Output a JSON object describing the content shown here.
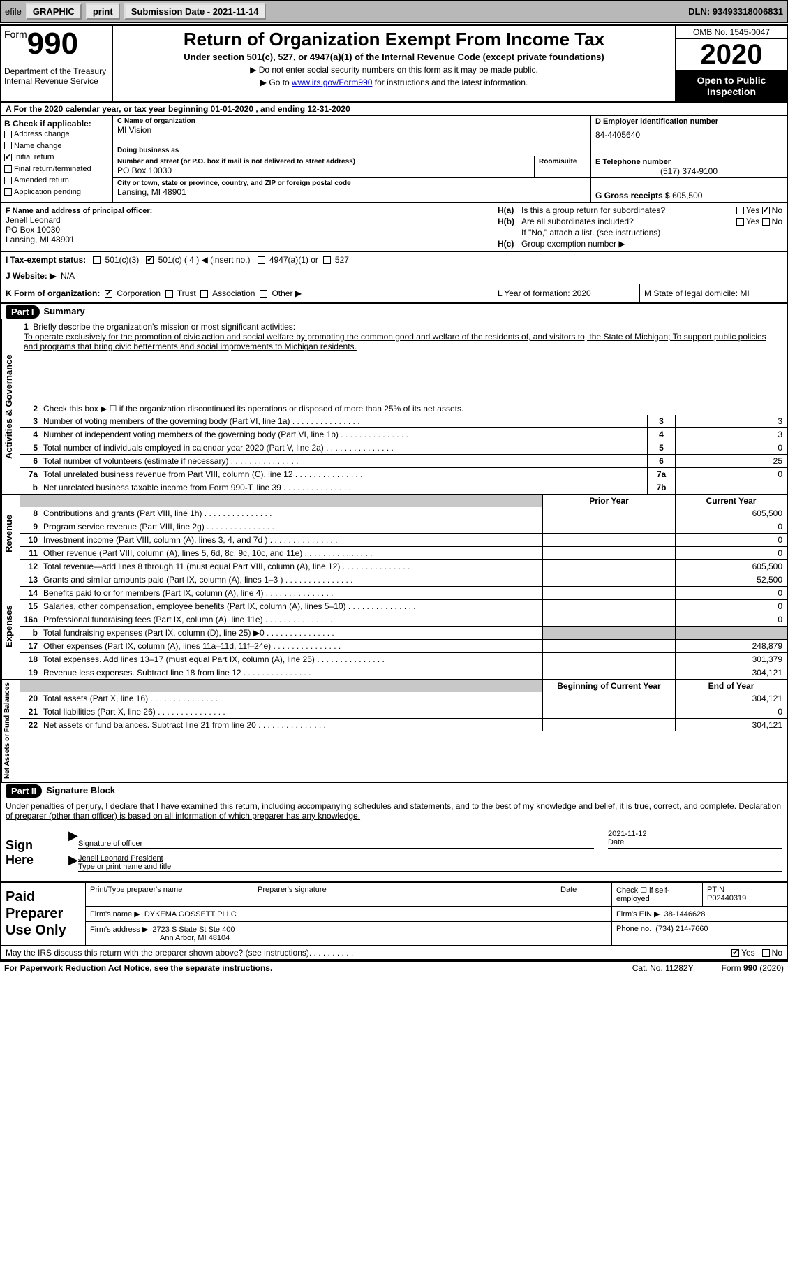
{
  "top_bar": {
    "efile": "efile",
    "graphic": "GRAPHIC",
    "print": "print",
    "sub_label": "Submission Date - 2021-11-14",
    "dln": "DLN: 93493318006831"
  },
  "header": {
    "form_word": "Form",
    "form_num": "990",
    "dept": "Department of the Treasury\nInternal Revenue Service",
    "title": "Return of Organization Exempt From Income Tax",
    "subtitle": "Under section 501(c), 527, or 4947(a)(1) of the Internal Revenue Code (except private foundations)",
    "note1": "▶ Do not enter social security numbers on this form as it may be made public.",
    "note2_pre": "▶ Go to ",
    "note2_link": "www.irs.gov/Form990",
    "note2_post": " for instructions and the latest information.",
    "omb": "OMB No. 1545-0047",
    "year": "2020",
    "open": "Open to Public Inspection"
  },
  "row_a": "A For the 2020 calendar year, or tax year beginning 01-01-2020   , and ending 12-31-2020",
  "col_b": {
    "hdr": "B Check if applicable:",
    "items": [
      "Address change",
      "Name change",
      "Initial return",
      "Final return/terminated",
      "Amended return",
      "Application pending"
    ]
  },
  "col_c": {
    "name_lbl": "C Name of organization",
    "name": "MI Vision",
    "dba_lbl": "Doing business as",
    "dba": "",
    "addr_lbl": "Number and street (or P.O. box if mail is not delivered to street address)",
    "room_lbl": "Room/suite",
    "addr": "PO Box 10030",
    "city_lbl": "City or town, state or province, country, and ZIP or foreign postal code",
    "city": "Lansing, MI  48901"
  },
  "col_d": {
    "ein_lbl": "D Employer identification number",
    "ein": "84-4405640",
    "tel_lbl": "E Telephone number",
    "tel": "(517) 374-9100",
    "gross_lbl": "G Gross receipts $",
    "gross": "605,500"
  },
  "col_f": {
    "lbl": "F Name and address of principal officer:",
    "name": "Jenell Leonard",
    "addr1": "PO Box 10030",
    "addr2": "Lansing, MI  48901"
  },
  "col_h": {
    "a_lbl": "H(a)",
    "a_txt": "Is this a group return for subordinates?",
    "b_lbl": "H(b)",
    "b_txt": "Are all subordinates included?",
    "b_note": "If \"No,\" attach a list. (see instructions)",
    "c_lbl": "H(c)",
    "c_txt": "Group exemption number ▶",
    "yes": "Yes",
    "no": "No"
  },
  "row_i": {
    "lbl": "I   Tax-exempt status:",
    "o1": "501(c)(3)",
    "o2": "501(c) ( 4 ) ◀ (insert no.)",
    "o3": "4947(a)(1) or",
    "o4": "527"
  },
  "row_j": {
    "lbl": "J   Website: ▶",
    "val": "N/A"
  },
  "row_k": {
    "lbl": "K Form of organization:",
    "opts": [
      "Corporation",
      "Trust",
      "Association",
      "Other ▶"
    ],
    "l": "L Year of formation: 2020",
    "m": "M State of legal domicile: MI"
  },
  "part1": {
    "num": "Part I",
    "title": "Summary",
    "side1": "Activities & Governance",
    "side2": "Revenue",
    "side3": "Expenses",
    "side4": "Net Assets or Fund Balances",
    "q1_lbl": "1",
    "q1_txt": "Briefly describe the organization's mission or most significant activities:",
    "q1_body": "To operate exclusively for the promotion of civic action and social welfare by promoting the common good and welfare of the residents of, and visitors to, the State of Michigan; To support public policies and programs that bring civic betterments and social improvements to Michigan residents.",
    "q2": "Check this box ▶ ☐ if the organization discontinued its operations or disposed of more than 25% of its net assets.",
    "lines_gov": [
      {
        "n": "3",
        "t": "Number of voting members of the governing body (Part VI, line 1a)",
        "box": "3",
        "v": "3"
      },
      {
        "n": "4",
        "t": "Number of independent voting members of the governing body (Part VI, line 1b)",
        "box": "4",
        "v": "3"
      },
      {
        "n": "5",
        "t": "Total number of individuals employed in calendar year 2020 (Part V, line 2a)",
        "box": "5",
        "v": "0"
      },
      {
        "n": "6",
        "t": "Total number of volunteers (estimate if necessary)",
        "box": "6",
        "v": "25"
      },
      {
        "n": "7a",
        "t": "Total unrelated business revenue from Part VIII, column (C), line 12",
        "box": "7a",
        "v": "0"
      },
      {
        "n": "b",
        "t": "Net unrelated business taxable income from Form 990-T, line 39",
        "box": "7b",
        "v": ""
      }
    ],
    "col_prior": "Prior Year",
    "col_curr": "Current Year",
    "lines_rev": [
      {
        "n": "8",
        "t": "Contributions and grants (Part VIII, line 1h)",
        "p": "",
        "c": "605,500"
      },
      {
        "n": "9",
        "t": "Program service revenue (Part VIII, line 2g)",
        "p": "",
        "c": "0"
      },
      {
        "n": "10",
        "t": "Investment income (Part VIII, column (A), lines 3, 4, and 7d )",
        "p": "",
        "c": "0"
      },
      {
        "n": "11",
        "t": "Other revenue (Part VIII, column (A), lines 5, 6d, 8c, 9c, 10c, and 11e)",
        "p": "",
        "c": "0"
      },
      {
        "n": "12",
        "t": "Total revenue—add lines 8 through 11 (must equal Part VIII, column (A), line 12)",
        "p": "",
        "c": "605,500"
      }
    ],
    "lines_exp": [
      {
        "n": "13",
        "t": "Grants and similar amounts paid (Part IX, column (A), lines 1–3 )",
        "p": "",
        "c": "52,500"
      },
      {
        "n": "14",
        "t": "Benefits paid to or for members (Part IX, column (A), line 4)",
        "p": "",
        "c": "0"
      },
      {
        "n": "15",
        "t": "Salaries, other compensation, employee benefits (Part IX, column (A), lines 5–10)",
        "p": "",
        "c": "0"
      },
      {
        "n": "16a",
        "t": "Professional fundraising fees (Part IX, column (A), line 11e)",
        "p": "",
        "c": "0"
      },
      {
        "n": "b",
        "t": "Total fundraising expenses (Part IX, column (D), line 25) ▶0",
        "p": "grey",
        "c": "grey"
      },
      {
        "n": "17",
        "t": "Other expenses (Part IX, column (A), lines 11a–11d, 11f–24e)",
        "p": "",
        "c": "248,879"
      },
      {
        "n": "18",
        "t": "Total expenses. Add lines 13–17 (must equal Part IX, column (A), line 25)",
        "p": "",
        "c": "301,379"
      },
      {
        "n": "19",
        "t": "Revenue less expenses. Subtract line 18 from line 12",
        "p": "",
        "c": "304,121"
      }
    ],
    "col_begin": "Beginning of Current Year",
    "col_end": "End of Year",
    "lines_net": [
      {
        "n": "20",
        "t": "Total assets (Part X, line 16)",
        "p": "",
        "c": "304,121"
      },
      {
        "n": "21",
        "t": "Total liabilities (Part X, line 26)",
        "p": "",
        "c": "0"
      },
      {
        "n": "22",
        "t": "Net assets or fund balances. Subtract line 21 from line 20",
        "p": "",
        "c": "304,121"
      }
    ]
  },
  "part2": {
    "num": "Part II",
    "title": "Signature Block",
    "decl": "Under penalties of perjury, I declare that I have examined this return, including accompanying schedules and statements, and to the best of my knowledge and belief, it is true, correct, and complete. Declaration of preparer (other than officer) is based on all information of which preparer has any knowledge.",
    "sign_here": "Sign Here",
    "sig_off": "Signature of officer",
    "sig_date": "2021-11-12",
    "date_lbl": "Date",
    "name_title": "Jenell Leonard  President",
    "name_lbl": "Type or print name and title",
    "paid": "Paid Preparer Use Only",
    "p_name_lbl": "Print/Type preparer's name",
    "p_sig_lbl": "Preparer's signature",
    "p_date_lbl": "Date",
    "p_self": "Check ☐ if self-employed",
    "ptin_lbl": "PTIN",
    "ptin": "P02440319",
    "firm_name_lbl": "Firm's name   ▶",
    "firm_name": "DYKEMA GOSSETT PLLC",
    "firm_ein_lbl": "Firm's EIN ▶",
    "firm_ein": "38-1446628",
    "firm_addr_lbl": "Firm's address ▶",
    "firm_addr1": "2723 S State St Ste 400",
    "firm_addr2": "Ann Arbor, MI  48104",
    "phone_lbl": "Phone no.",
    "phone": "(734) 214-7660"
  },
  "footer": {
    "q": "May the IRS discuss this return with the preparer shown above? (see instructions)",
    "yes": "Yes",
    "no": "No",
    "pra": "For Paperwork Reduction Act Notice, see the separate instructions.",
    "cat": "Cat. No. 11282Y",
    "form": "Form 990 (2020)"
  }
}
